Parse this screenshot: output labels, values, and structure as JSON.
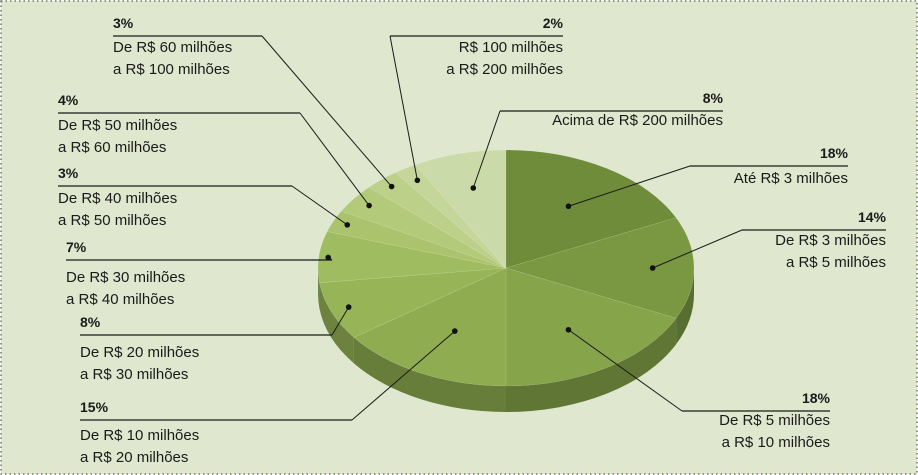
{
  "chart_data": {
    "type": "pie",
    "categories": [
      [
        "Até R$ 3 milhões"
      ],
      [
        "De R$ 3 milhões",
        "a R$ 5 milhões"
      ],
      [
        "De R$ 5 milhões",
        "a R$ 10 milhões"
      ],
      [
        "De R$ 10 milhões",
        "a R$ 20 milhões"
      ],
      [
        "De R$ 20 milhões",
        "a R$ 30 milhões"
      ],
      [
        "De R$ 30 milhões",
        "a R$ 40 milhões"
      ],
      [
        "De R$ 40 milhões",
        "a R$ 50 milhões"
      ],
      [
        "De R$ 50 milhões",
        "a R$ 60 milhões"
      ],
      [
        "De R$ 60 milhões",
        "a R$ 100 milhões"
      ],
      [
        "R$ 100 milhões",
        "a R$ 200 milhões"
      ],
      [
        "Acima de R$ 200 milhões"
      ]
    ],
    "values": [
      18,
      14,
      18,
      15,
      8,
      7,
      3,
      4,
      3,
      2,
      8
    ],
    "value_labels": [
      "18%",
      "14%",
      "18%",
      "15%",
      "8%",
      "7%",
      "3%",
      "4%",
      "3%",
      "2%",
      "8%"
    ],
    "colors": [
      "#6f8c3a",
      "#7a9842",
      "#86a44a",
      "#8fad50",
      "#97b557",
      "#a0bc60",
      "#aac36c",
      "#b3ca7b",
      "#bcd08a",
      "#c4d69a",
      "#cbdaa9"
    ]
  }
}
